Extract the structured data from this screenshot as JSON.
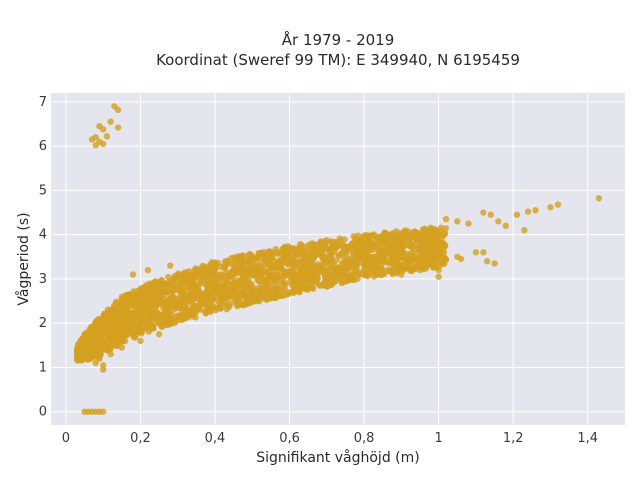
{
  "chart_data": {
    "type": "scatter",
    "title_line1": "År 1979 - 2019",
    "title_line2": "Koordinat (Sweref 99 TM): E 349940, N 6195459",
    "xlabel": "Signifikant våghöjd (m)",
    "ylabel": "Vågperiod (s)",
    "xlim": [
      -0.04,
      1.5
    ],
    "ylim": [
      -0.3,
      7.2
    ],
    "x_ticks": [
      0,
      0.2,
      0.4,
      0.6,
      0.8,
      1.0,
      1.2,
      1.4
    ],
    "x_tick_labels": [
      "0",
      "0,2",
      "0,4",
      "0,6",
      "0,8",
      "1",
      "1,2",
      "1,4"
    ],
    "y_ticks": [
      0,
      1,
      2,
      3,
      4,
      5,
      6,
      7
    ],
    "y_tick_labels": [
      "0",
      "1",
      "2",
      "3",
      "4",
      "5",
      "6",
      "7"
    ],
    "grid": true,
    "background": "#e5e5ee",
    "marker_color": "#d4a020",
    "series": [
      {
        "points": [
          [
            0.13,
            6.9
          ],
          [
            0.14,
            6.82
          ],
          [
            0.12,
            6.55
          ],
          [
            0.14,
            6.42
          ],
          [
            0.09,
            6.45
          ],
          [
            0.1,
            6.38
          ],
          [
            0.08,
            6.2
          ],
          [
            0.11,
            6.22
          ],
          [
            0.09,
            6.1
          ],
          [
            0.08,
            6.02
          ],
          [
            0.1,
            6.05
          ],
          [
            0.07,
            6.15
          ],
          [
            0.05,
            0
          ],
          [
            0.06,
            0
          ],
          [
            0.07,
            0
          ],
          [
            0.08,
            0
          ],
          [
            0.09,
            0
          ],
          [
            0.1,
            0
          ],
          [
            0.03,
            1.22
          ],
          [
            0.04,
            1.25
          ],
          [
            0.05,
            1.3
          ],
          [
            0.08,
            1.1
          ],
          [
            0.1,
            0.95
          ],
          [
            1.43,
            4.82
          ],
          [
            1.32,
            4.68
          ],
          [
            1.3,
            4.62
          ],
          [
            1.26,
            4.55
          ],
          [
            1.24,
            4.52
          ],
          [
            1.21,
            4.45
          ],
          [
            1.12,
            4.5
          ],
          [
            1.14,
            4.45
          ],
          [
            1.16,
            4.3
          ],
          [
            1.18,
            4.2
          ],
          [
            1.23,
            4.1
          ],
          [
            1.05,
            4.3
          ],
          [
            1.08,
            4.25
          ],
          [
            1.02,
            4.35
          ],
          [
            1.1,
            3.6
          ],
          [
            1.13,
            3.4
          ],
          [
            1.12,
            3.6
          ],
          [
            1.15,
            3.35
          ],
          [
            1.05,
            3.5
          ],
          [
            0.98,
            3.4
          ],
          [
            0.95,
            3.2
          ],
          [
            1.0,
            3.2
          ],
          [
            1.06,
            3.45
          ],
          [
            0.92,
            3.3
          ],
          [
            1.0,
            3.05
          ],
          [
            0.9,
            3.1
          ],
          [
            0.18,
            3.1
          ],
          [
            0.22,
            3.2
          ],
          [
            0.28,
            3.3
          ],
          [
            0.2,
            1.6
          ],
          [
            0.25,
            1.75
          ],
          [
            0.15,
            1.45
          ],
          [
            0.12,
            1.3
          ],
          [
            0.09,
            1.2
          ],
          [
            0.1,
            1.05
          ]
        ],
        "band": {
          "x_range": [
            0.03,
            1.02
          ],
          "upper": [
            [
              0.03,
              1.55
            ],
            [
              0.08,
              2.05
            ],
            [
              0.15,
              2.6
            ],
            [
              0.25,
              3.0
            ],
            [
              0.4,
              3.4
            ],
            [
              0.6,
              3.75
            ],
            [
              0.8,
              4.0
            ],
            [
              1.02,
              4.2
            ]
          ],
          "lower": [
            [
              0.03,
              1.15
            ],
            [
              0.08,
              1.2
            ],
            [
              0.15,
              1.55
            ],
            [
              0.25,
              1.9
            ],
            [
              0.4,
              2.25
            ],
            [
              0.6,
              2.65
            ],
            [
              0.8,
              3.0
            ],
            [
              1.02,
              3.3
            ]
          ]
        }
      }
    ]
  }
}
